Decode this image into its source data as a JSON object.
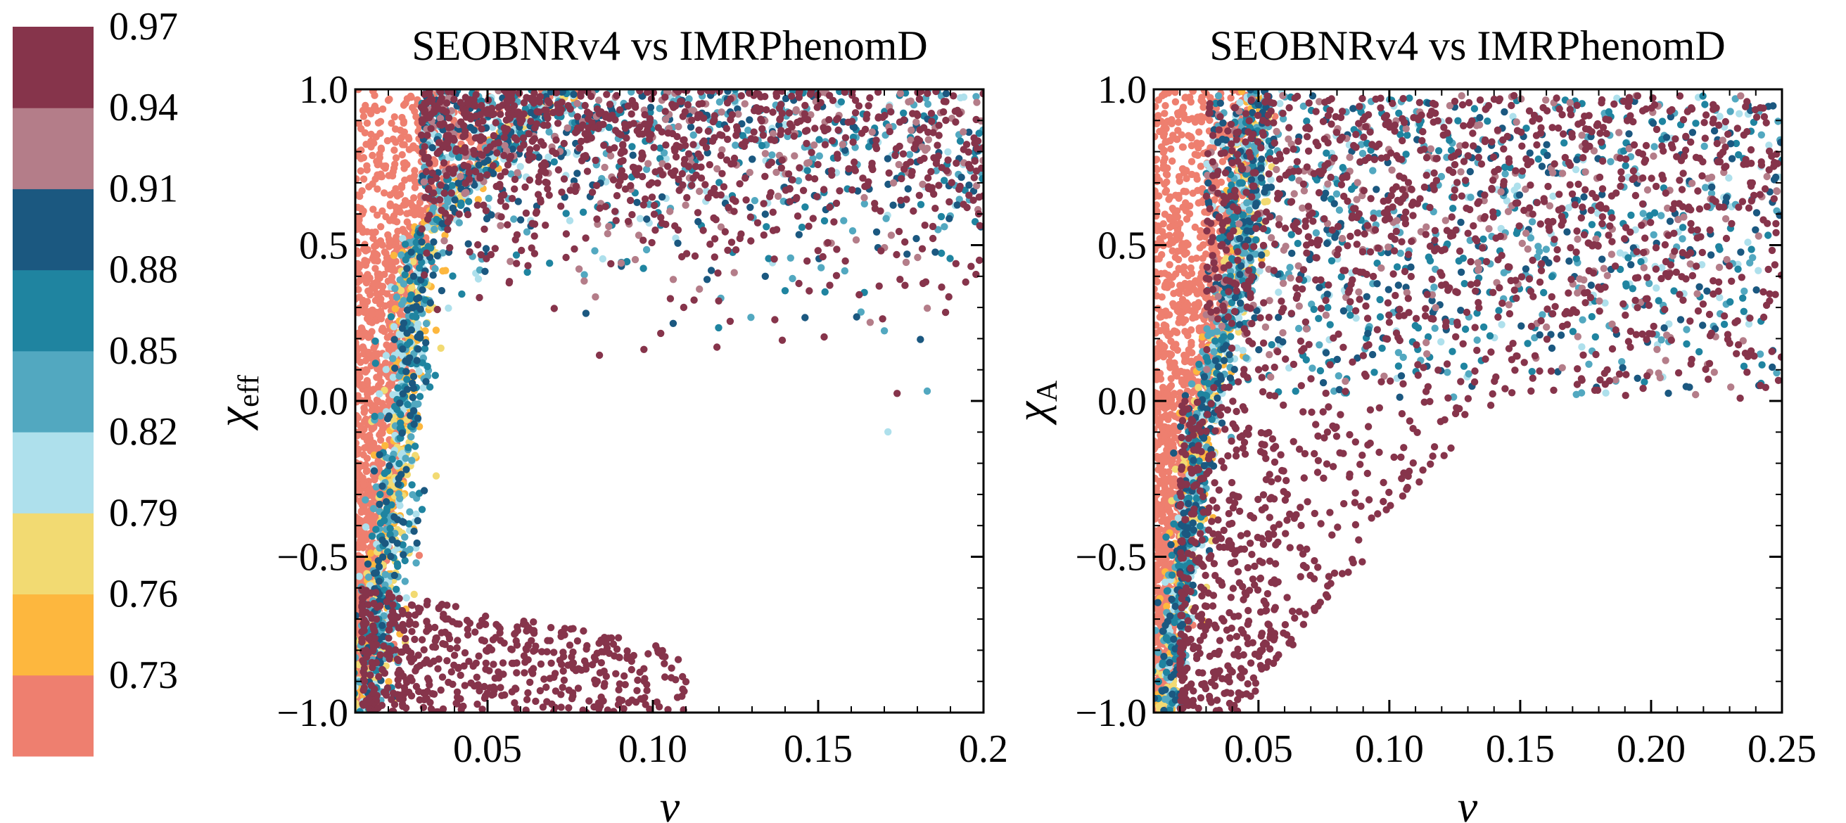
{
  "colorbar": {
    "colors": [
      "#EE7F6F",
      "#FDB73E",
      "#F2DA72",
      "#AEE0EC",
      "#52A8C0",
      "#1F84A0",
      "#1B5880",
      "#B47D89",
      "#86344B"
    ],
    "tick_labels": [
      "0.73",
      "0.76",
      "0.79",
      "0.82",
      "0.85",
      "0.88",
      "0.91",
      "0.94",
      "0.97"
    ]
  },
  "chart_data": [
    {
      "type": "scatter",
      "title": "SEOBNRv4 vs IMRPhenomD",
      "xlabel": "ν",
      "ylabel": "χ",
      "ylabel_sub": "eff",
      "xlim": [
        0.01,
        0.2
      ],
      "ylim": [
        -1.0,
        1.0
      ],
      "xticks": [
        0.05,
        0.1,
        0.15,
        0.2
      ],
      "xtick_labels": [
        "0.05",
        "0.10",
        "0.15",
        "0.2"
      ],
      "yticks": [
        -1.0,
        -0.5,
        0.0,
        0.5,
        1.0
      ],
      "ytick_labels": [
        "−1.0",
        "−0.5",
        "0.0",
        "0.5",
        "1.0"
      ],
      "color_by": "match",
      "shape": "vertical boundary band near low ν with high-match cloud at top and low-χ lobe at bottom-left",
      "regions": [
        {
          "desc": "low-match wall",
          "x": [
            0.01,
            0.022
          ],
          "y": [
            -1.0,
            1.0
          ],
          "match": 0.72
        },
        {
          "desc": "transition band",
          "x_at_y": [
            [
              -1.0,
              0.013
            ],
            [
              -0.5,
              0.02
            ],
            [
              0.0,
              0.025
            ],
            [
              0.5,
              0.03
            ],
            [
              0.8,
              0.05
            ],
            [
              1.0,
              0.075
            ]
          ],
          "match_range": [
            0.74,
            0.92
          ]
        },
        {
          "desc": "upper cloud",
          "x": [
            0.03,
            0.2
          ],
          "y_top": 1.0,
          "y_bottom_at_x": [
            [
              0.03,
              0.45
            ],
            [
              0.1,
              0.38
            ],
            [
              0.2,
              0.25
            ]
          ],
          "match_range": [
            0.82,
            0.97
          ]
        },
        {
          "desc": "lower lobe",
          "x": [
            0.012,
            0.11
          ],
          "y": [
            -1.0,
            -0.6
          ],
          "match": 0.97
        }
      ]
    },
    {
      "type": "scatter",
      "title": "SEOBNRv4 vs IMRPhenomD",
      "xlabel": "ν",
      "ylabel": "χ",
      "ylabel_sub": "A",
      "xlim": [
        0.01,
        0.25
      ],
      "ylim": [
        -1.0,
        1.0
      ],
      "xticks": [
        0.05,
        0.1,
        0.15,
        0.2,
        0.25
      ],
      "xtick_labels": [
        "0.05",
        "0.10",
        "0.15",
        "0.20",
        "0.25"
      ],
      "yticks": [
        -1.0,
        -0.5,
        0.0,
        0.5,
        1.0
      ],
      "ytick_labels": [
        "−1.0",
        "−0.5",
        "0.0",
        "0.5",
        "1.0"
      ],
      "color_by": "match",
      "shape": "low-match wall at low ν, mixed cloud filling upper region, sparse triangular tail toward bottom",
      "regions": [
        {
          "desc": "low-match wall",
          "x": [
            0.01,
            0.028
          ],
          "y": [
            -1.0,
            1.0
          ],
          "match": 0.72
        },
        {
          "desc": "transition band",
          "x_at_y": [
            [
              -1.0,
              0.015
            ],
            [
              -0.5,
              0.022
            ],
            [
              0.0,
              0.03
            ],
            [
              0.5,
              0.045
            ],
            [
              1.0,
              0.05
            ]
          ],
          "match_range": [
            0.74,
            0.92
          ]
        },
        {
          "desc": "upper cloud",
          "x": [
            0.03,
            0.25
          ],
          "y_top": 0.98,
          "y_bottom_at_x": [
            [
              0.04,
              0.0
            ],
            [
              0.1,
              0.0
            ],
            [
              0.25,
              0.0
            ]
          ],
          "match_range": [
            0.82,
            0.97
          ]
        },
        {
          "desc": "lower tail",
          "x": [
            0.02,
            0.12
          ],
          "y": [
            -1.0,
            0.0
          ],
          "match": 0.97
        }
      ]
    }
  ]
}
